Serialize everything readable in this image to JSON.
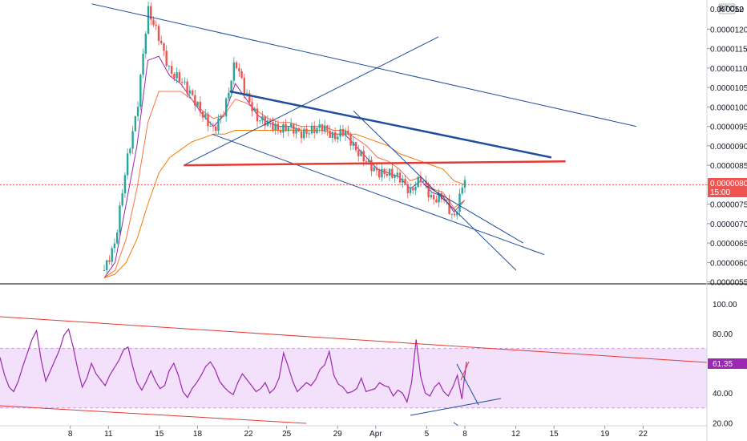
{
  "chart_data": [
    {
      "type": "candlestick",
      "panel": "price",
      "y_scale": "linear",
      "ylim": [
        5.45e-06,
        1.275e-05
      ],
      "quote_badge": "BTC",
      "top_tick_partial": "0.000012",
      "top_tick_tail": "50",
      "price_ticks": [
        "0.00001200",
        "0.00001150",
        "0.00001100",
        "0.00001050",
        "0.00001000",
        "0.00000950",
        "0.00000900",
        "0.00000850",
        "0.00000800",
        "0.00000750",
        "0.00000700",
        "0.00000650",
        "0.00000600",
        "0.00000550"
      ],
      "price_tick_values": [
        1.2e-05,
        1.15e-05,
        1.1e-05,
        1.05e-05,
        1e-05,
        9.5e-06,
        9e-06,
        8.5e-06,
        8e-06,
        7.5e-06,
        7e-06,
        6.5e-06,
        6e-06,
        5.5e-06
      ],
      "last_price_label": "0.00000800",
      "last_price": 8e-06,
      "countdown_label": "15:00",
      "colors": {
        "up": "#26a69a",
        "down": "#ef5350",
        "last_price": "#ef5350",
        "trendline_blue": "#1f4e9c",
        "trendline_red": "#e53935"
      },
      "approx_closes": [
        5.8e-06,
        6.5e-06,
        8.5e-06,
        9.9e-06,
        1.25e-05,
        1.18e-05,
        1.09e-05,
        1.07e-05,
        1.03e-05,
        9.8e-06,
        9.4e-06,
        9.9e-06,
        1.12e-05,
        1.03e-05,
        9.7e-06,
        9.6e-06,
        9.4e-06,
        9.5e-06,
        9.3e-06,
        9.4e-06,
        9.5e-06,
        9.2e-06,
        9.4e-06,
        8.9e-06,
        8.6e-06,
        8.3e-06,
        8.3e-06,
        8.2e-06,
        7.8e-06,
        8.2e-06,
        7.6e-06,
        7.7e-06,
        7.1e-06,
        8.2e-06
      ],
      "moving_averages": [
        {
          "color": "#9c27b0",
          "values": [
            5.6e-06,
            6e-06,
            7.5e-06,
            9e-06,
            1.12e-05,
            1.13e-05,
            1.08e-05,
            1.06e-05,
            1.02e-05,
            9.8e-06,
            9.5e-06,
            9.8e-06,
            1.06e-05,
            1.02e-05,
            9.8e-06,
            9.6e-06,
            9.5e-06,
            9.5e-06,
            9.4e-06,
            9.4e-06,
            9.4e-06,
            9.3e-06,
            9.3e-06,
            9e-06,
            8.7e-06,
            8.4e-06,
            8.3e-06,
            8.2e-06,
            7.9e-06,
            8.1e-06,
            7.8e-06,
            7.7e-06,
            7.3e-06,
            7.6e-06
          ]
        },
        {
          "color": "#ff7043",
          "values": [
            5.6e-06,
            5.8e-06,
            6.6e-06,
            7.9e-06,
            9.6e-06,
            1.04e-05,
            1.04e-05,
            1.04e-05,
            1.02e-05,
            9.9e-06,
            9.7e-06,
            9.8e-06,
            1.02e-05,
            1.01e-05,
            9.9e-06,
            9.7e-06,
            9.6e-06,
            9.6e-06,
            9.5e-06,
            9.5e-06,
            9.5e-06,
            9.4e-06,
            9.4e-06,
            9.2e-06,
            9e-06,
            8.7e-06,
            8.6e-06,
            8.4e-06,
            8.1e-06,
            8.2e-06,
            7.9e-06,
            7.8e-06,
            7.4e-06,
            7.6e-06
          ]
        },
        {
          "color": "#f57c00",
          "values": [
            5.6e-06,
            5.7e-06,
            6e-06,
            6.6e-06,
            7.5e-06,
            8.3e-06,
            8.7e-06,
            8.9e-06,
            9.1e-06,
            9.2e-06,
            9.3e-06,
            9.3e-06,
            9.4e-06,
            9.4e-06,
            9.4e-06,
            9.4e-06,
            9.4e-06,
            9.4e-06,
            9.4e-06,
            9.4e-06,
            9.4e-06,
            9.3e-06,
            9.3e-06,
            9.3e-06,
            9.2e-06,
            9.1e-06,
            9e-06,
            8.8e-06,
            8.7e-06,
            8.6e-06,
            8.5e-06,
            8.4e-06,
            8.1e-06,
            8e-06
          ]
        }
      ],
      "drawings": [
        {
          "kind": "trendline",
          "color": "#1f4e9c",
          "from": [
            0.13,
            1.265e-05
          ],
          "to": [
            0.9,
            9.5e-06
          ]
        },
        {
          "kind": "trendline",
          "color": "#1f4e9c",
          "from": [
            0.26,
            8.5e-06
          ],
          "to": [
            0.62,
            1.18e-05
          ]
        },
        {
          "kind": "trendline",
          "color": "#1f4e9c",
          "from": [
            0.3,
            9.3e-06
          ],
          "to": [
            0.77,
            6.2e-06
          ]
        },
        {
          "kind": "trendline",
          "color": "#1f4e9c",
          "bold": true,
          "from": [
            0.325,
            1.04e-05
          ],
          "to": [
            0.78,
            8.7e-06
          ]
        },
        {
          "kind": "horizontal",
          "color": "#e53935",
          "bold": true,
          "from": [
            0.26,
            8.5e-06
          ],
          "to": [
            0.8,
            8.6e-06
          ]
        },
        {
          "kind": "trendline",
          "color": "#1f4e9c",
          "from": [
            0.5,
            9.9e-06
          ],
          "to": [
            0.73,
            5.8e-06
          ]
        },
        {
          "kind": "trendline",
          "color": "#1f4e9c",
          "from": [
            0.6,
            8e-06
          ],
          "to": [
            0.74,
            6.5e-06
          ]
        }
      ]
    },
    {
      "type": "line",
      "panel": "rsi",
      "y_scale": "linear",
      "ylim": [
        18,
        107
      ],
      "rsi_ticks": [
        "100.00",
        "80.00",
        "60.00",
        "40.00",
        "20.00"
      ],
      "rsi_tick_values": [
        100,
        80,
        60,
        40,
        20
      ],
      "current_value_label": "61.35",
      "current_value": 61.35,
      "overbought": 70,
      "oversold": 30,
      "colors": {
        "line": "#9c27b0",
        "band": "#f3e1fb",
        "bound": "#c89ad9",
        "trend": "#e53935"
      },
      "values": [
        64,
        52,
        44,
        41,
        48,
        58,
        67,
        76,
        82,
        62,
        48,
        55,
        62,
        69,
        79,
        83,
        71,
        56,
        44,
        50,
        60,
        53,
        49,
        45,
        52,
        57,
        62,
        69,
        71,
        58,
        47,
        42,
        48,
        55,
        48,
        43,
        45,
        55,
        60,
        52,
        41,
        37,
        43,
        47,
        52,
        58,
        61,
        56,
        48,
        44,
        41,
        39,
        47,
        53,
        49,
        45,
        41,
        43,
        47,
        40,
        43,
        50,
        67,
        58,
        48,
        41,
        44,
        47,
        45,
        49,
        56,
        59,
        68,
        52,
        46,
        44,
        40,
        41,
        43,
        50,
        41,
        42,
        43,
        47,
        45,
        44,
        38,
        42,
        40,
        34,
        47,
        76,
        51,
        40,
        38,
        44,
        47,
        41,
        38,
        44,
        52,
        36,
        61
      ],
      "x_axis": {
        "start": "2020-03-05",
        "end": "2020-04-08"
      }
    }
  ],
  "x_ticks": [
    "8",
    "11",
    "15",
    "18",
    "22",
    "25",
    "29",
    "Apr",
    "5",
    "8",
    "12",
    "15",
    "19",
    "22"
  ],
  "x_tick_dates": [
    "2020-03-08",
    "2020-03-11",
    "2020-03-15",
    "2020-03-18",
    "2020-03-22",
    "2020-03-25",
    "2020-03-29",
    "2020-04-01",
    "2020-04-05",
    "2020-04-08",
    "2020-04-12",
    "2020-04-15",
    "2020-04-19",
    "2020-04-22"
  ]
}
